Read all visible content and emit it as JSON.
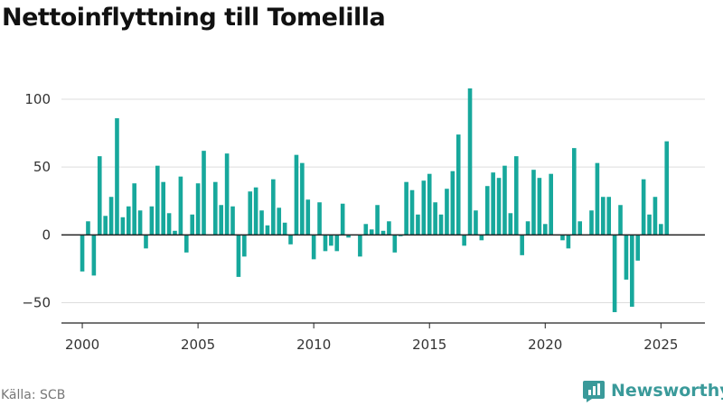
{
  "title": "Nettoinflyttning till Tomelilla",
  "source": "Källa: SCB",
  "brand": {
    "name": "Newsworthy",
    "icon": "newsworthy-logo-icon",
    "color": "#3a9a9a"
  },
  "colors": {
    "bar": "#17a89c",
    "axis": "#222222",
    "grid": "#dddddd"
  },
  "chart_data": {
    "type": "bar",
    "title": "Nettoinflyttning till Tomelilla",
    "xlabel": "",
    "ylabel": "",
    "x_start": "2000-Q1",
    "x_ticks": [
      2000,
      2005,
      2010,
      2015,
      2020,
      2025
    ],
    "y_ticks": [
      -50,
      0,
      50,
      100
    ],
    "ylim": [
      -65,
      110
    ],
    "xlim": [
      1999.1,
      2026.9
    ],
    "grid": true,
    "values": [
      -27,
      10,
      -30,
      58,
      14,
      28,
      86,
      13,
      21,
      38,
      18,
      -10,
      21,
      51,
      39,
      16,
      3,
      43,
      -13,
      15,
      38,
      62,
      0,
      39,
      22,
      60,
      21,
      -31,
      -16,
      32,
      35,
      18,
      7,
      41,
      20,
      9,
      -7,
      59,
      53,
      26,
      -18,
      24,
      -12,
      -8,
      -12,
      23,
      -2,
      0,
      -16,
      8,
      4,
      22,
      3,
      10,
      -13,
      -1,
      39,
      33,
      15,
      40,
      45,
      24,
      15,
      34,
      47,
      74,
      -8,
      108,
      18,
      -4,
      36,
      46,
      42,
      51,
      16,
      58,
      -15,
      10,
      48,
      42,
      8,
      45,
      0,
      -4,
      -10,
      64,
      10,
      0,
      18,
      53,
      28,
      28,
      -57,
      22,
      -33,
      -53,
      -19,
      41,
      15,
      28,
      8,
      69
    ]
  }
}
